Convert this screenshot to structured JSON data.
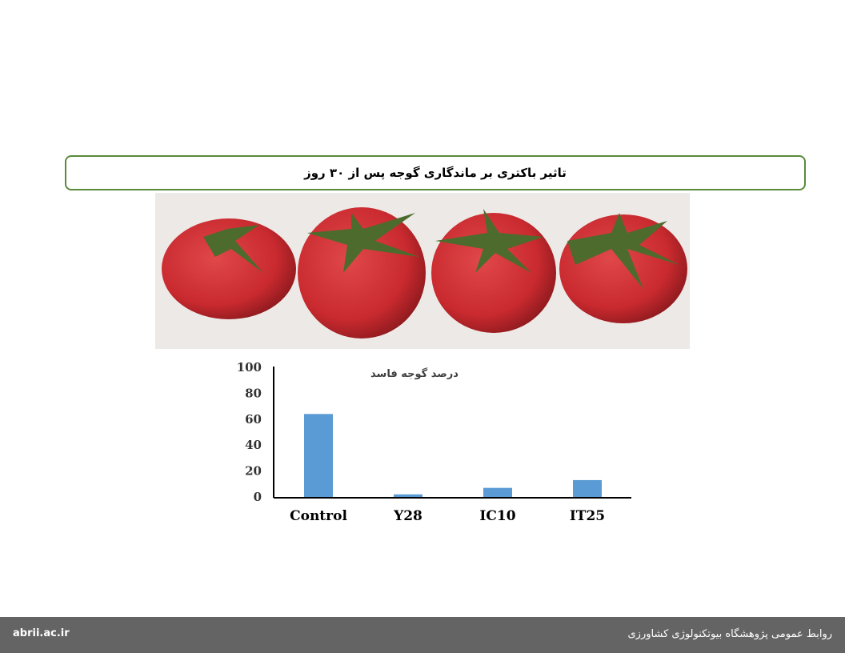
{
  "header": {
    "title": "تاثیر باکتری بر ماندگاری گوجه پس از ۳۰ روز"
  },
  "photo": {
    "description_icon": "tomatoes-photo"
  },
  "chart_data": {
    "type": "bar",
    "title": "درصد گوجه فاسد",
    "categories": [
      "Control",
      "Y28",
      "IC10",
      "IT25"
    ],
    "values": [
      64,
      2,
      7,
      13
    ],
    "ylim": [
      0,
      100
    ],
    "yticks": [
      0,
      20,
      40,
      60,
      80,
      100
    ],
    "grid": false,
    "bar_color": "#5b9bd5"
  },
  "footer": {
    "website": "abrii.ac.ir",
    "org": "روابط عمومی پژوهشگاه بیوتکنولوژی کشاورزی"
  }
}
